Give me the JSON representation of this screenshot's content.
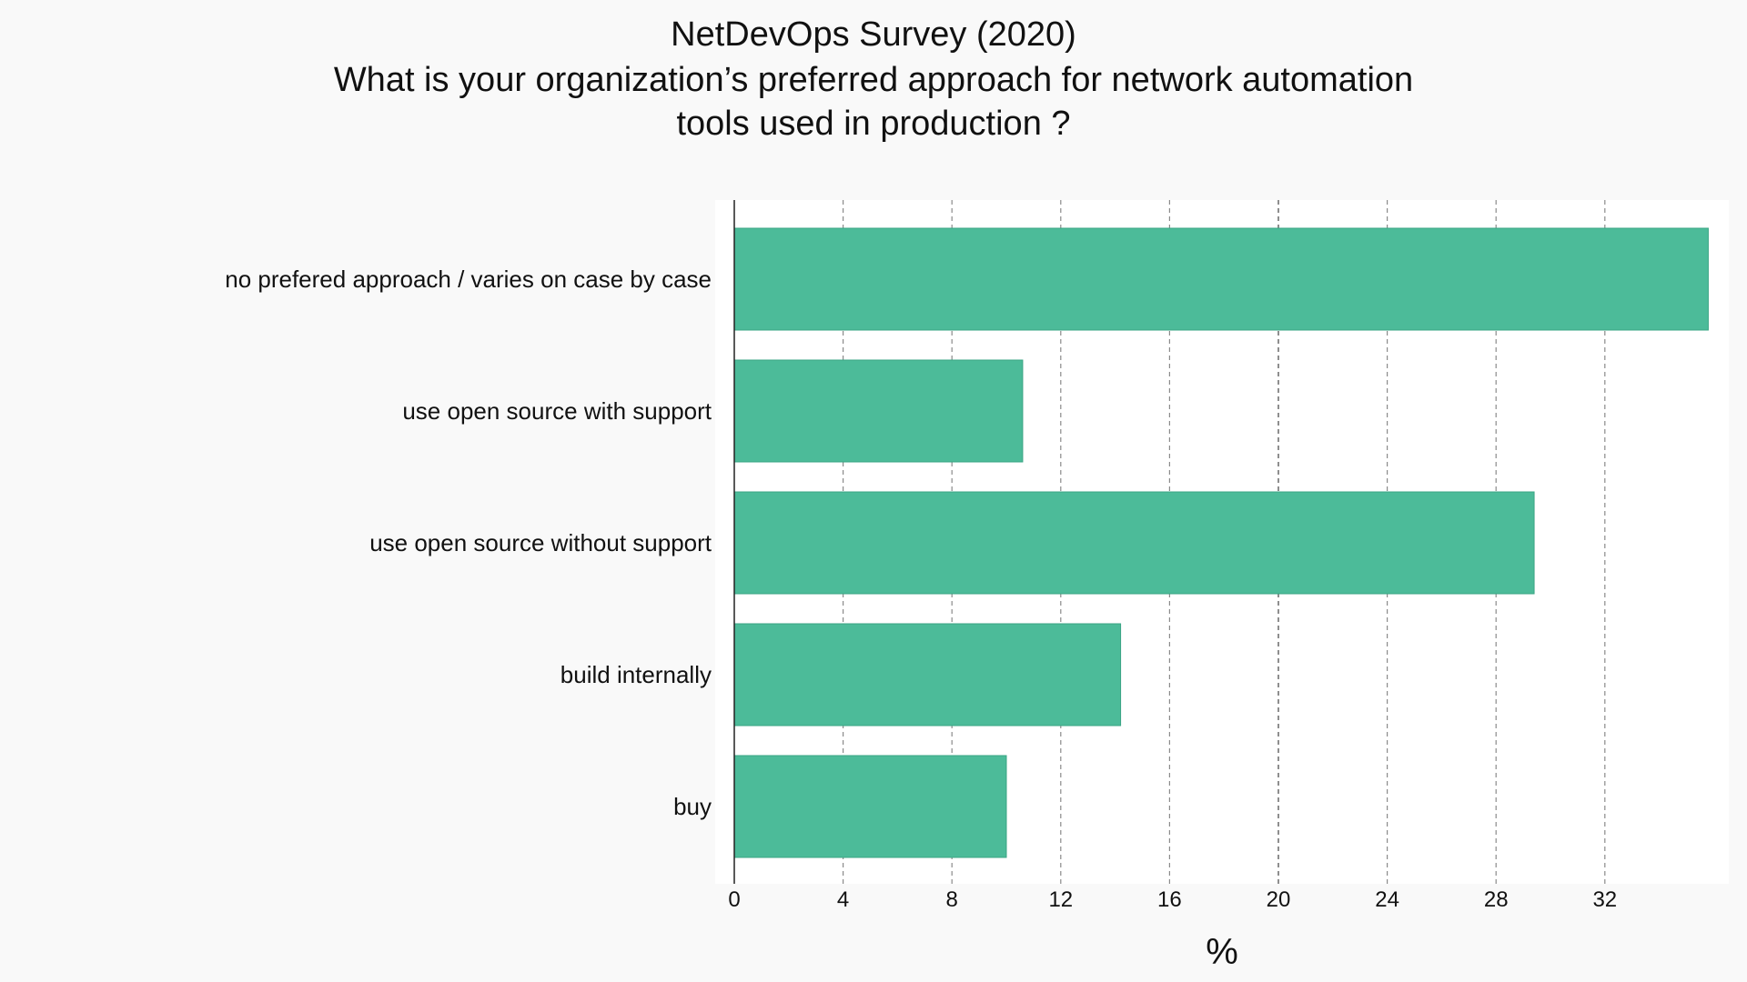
{
  "chart_data": {
    "type": "bar",
    "orientation": "horizontal",
    "title": [
      "NetDevOps Survey (2020)",
      "What is your organization’s preferred approach for network automation",
      "tools used in production ?"
    ],
    "categories": [
      "no prefered approach / varies on case by case",
      "use open source with support",
      "use open source without support",
      "build internally",
      "buy"
    ],
    "values": [
      35.8,
      10.6,
      29.4,
      14.2,
      10.0
    ],
    "xlabel": "%",
    "ylabel": "",
    "xlim": [
      0,
      36
    ],
    "xticks": [
      "0",
      "4",
      "8",
      "12",
      "16",
      "20",
      "24",
      "28",
      "32"
    ],
    "grid": "vertical dashed",
    "colors": {
      "bar": "#4cbb99",
      "plot_background": "#ffffff",
      "page_background": "#f9f9f9"
    }
  }
}
